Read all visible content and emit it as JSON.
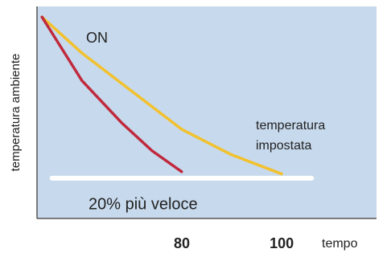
{
  "chart_data": {
    "type": "line",
    "x_label": "tempo",
    "y_label": "temperatura ambiente",
    "annotations": [
      "ON",
      "temperatura",
      "impostata",
      "20% più veloce"
    ],
    "xlim": [
      51,
      119
    ],
    "xticks": [
      80,
      100
    ],
    "ylim": [
      0,
      100
    ],
    "series": [
      {
        "color": "#f2c12e",
        "style": "solid",
        "x": [
          52,
          60,
          70,
          80,
          90,
          100
        ],
        "values": [
          95,
          78,
          60,
          42,
          30,
          21
        ]
      },
      {
        "color": "#c0283c",
        "style": "dotted",
        "x": [
          52,
          60,
          68,
          74,
          80
        ],
        "values": [
          95,
          65,
          45,
          32,
          22
        ]
      },
      {
        "color": "#ffffff",
        "style": "solid",
        "x": [
          54,
          106
        ],
        "values": [
          19,
          19
        ]
      }
    ]
  }
}
